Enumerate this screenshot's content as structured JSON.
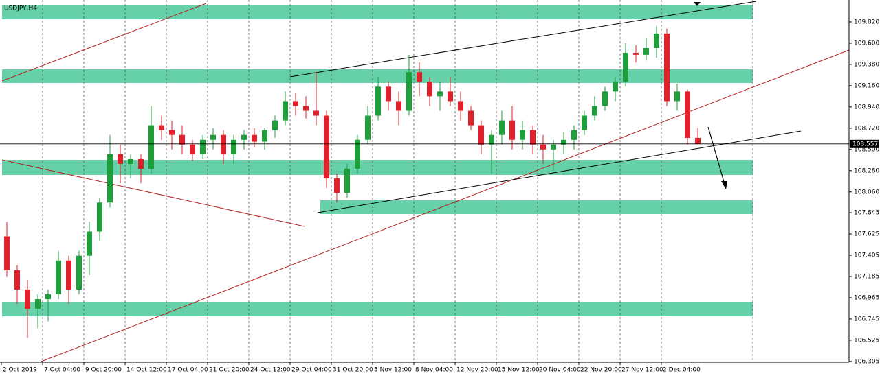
{
  "chart_data": {
    "type": "candlestick",
    "title": "USDJPY,H4",
    "categories": [
      "2 Oct 2019",
      null,
      null,
      null,
      "7 Oct 04:00",
      null,
      null,
      null,
      "9 Oct 20:00",
      null,
      null,
      null,
      "14 Oct 12:00",
      null,
      null,
      null,
      "17 Oct 04:00",
      null,
      null,
      null,
      "21 Oct 20:00",
      null,
      null,
      null,
      "24 Oct 12:00",
      null,
      null,
      null,
      "29 Oct 04:00",
      null,
      null,
      null,
      "31 Oct 20:00",
      null,
      null,
      null,
      "5 Nov 12:00",
      null,
      null,
      null,
      "8 Nov 04:00",
      null,
      null,
      null,
      "12 Nov 20:00",
      null,
      null,
      null,
      "15 Nov 12:00",
      null,
      null,
      null,
      "20 Nov 04:00",
      null,
      null,
      null,
      "22 Nov 20:00",
      null,
      null,
      null,
      "27 Nov 12:00",
      null,
      null,
      null,
      "2 Dec 04:00",
      null,
      null,
      null
    ],
    "open": [
      107.6,
      107.25,
      107.05,
      106.85,
      106.95,
      107.0,
      107.35,
      107.05,
      107.4,
      107.65,
      107.95,
      108.45,
      108.35,
      108.4,
      108.3,
      108.75,
      108.7,
      108.65,
      108.55,
      108.45,
      108.6,
      108.65,
      108.45,
      108.6,
      108.65,
      108.58,
      108.7,
      108.8,
      109.0,
      108.95,
      108.9,
      108.85,
      108.2,
      108.05,
      108.3,
      108.6,
      108.85,
      109.15,
      109.0,
      108.9,
      109.3,
      109.2,
      109.05,
      109.1,
      109.0,
      108.9,
      108.75,
      108.55,
      108.65,
      108.8,
      108.6,
      108.7,
      108.55,
      108.5,
      108.55,
      108.6,
      108.7,
      108.85,
      108.95,
      109.1,
      109.2,
      109.5,
      109.48,
      109.55,
      109.7,
      109.0,
      109.1,
      108.62
    ],
    "high": [
      107.75,
      107.3,
      107.15,
      107.0,
      107.05,
      107.45,
      107.4,
      107.45,
      107.75,
      108.0,
      108.65,
      108.55,
      108.45,
      108.45,
      108.95,
      108.85,
      108.8,
      108.75,
      108.6,
      108.65,
      108.72,
      108.7,
      108.65,
      108.7,
      108.72,
      108.72,
      108.85,
      109.1,
      109.08,
      109.05,
      109.3,
      108.9,
      108.25,
      108.35,
      108.65,
      108.95,
      109.25,
      109.2,
      109.1,
      109.48,
      109.4,
      109.25,
      109.2,
      109.25,
      109.1,
      108.95,
      108.8,
      108.7,
      108.9,
      108.95,
      108.8,
      108.75,
      108.65,
      108.6,
      108.68,
      108.75,
      108.9,
      109.05,
      109.15,
      109.25,
      109.6,
      109.58,
      109.65,
      109.78,
      109.75,
      109.18,
      109.12,
      108.72
    ],
    "low": [
      107.18,
      106.9,
      106.55,
      106.65,
      106.72,
      106.95,
      106.9,
      107.0,
      107.2,
      107.55,
      107.9,
      108.15,
      108.2,
      108.15,
      108.25,
      108.6,
      108.5,
      108.45,
      108.38,
      108.4,
      108.5,
      108.35,
      108.35,
      108.5,
      108.52,
      108.5,
      108.62,
      108.75,
      108.85,
      108.82,
      108.75,
      108.1,
      107.95,
      108.0,
      108.25,
      108.55,
      108.8,
      108.9,
      108.75,
      108.85,
      109.05,
      108.95,
      108.9,
      108.95,
      108.8,
      108.7,
      108.45,
      108.25,
      108.55,
      108.5,
      108.5,
      108.45,
      108.35,
      108.28,
      108.45,
      108.5,
      108.65,
      108.8,
      108.9,
      109.0,
      109.15,
      109.4,
      109.42,
      109.45,
      108.95,
      108.9,
      108.55,
      108.55
    ],
    "close": [
      107.25,
      107.05,
      106.85,
      106.95,
      107.0,
      107.35,
      107.05,
      107.4,
      107.65,
      107.95,
      108.45,
      108.35,
      108.4,
      108.3,
      108.75,
      108.7,
      108.65,
      108.55,
      108.45,
      108.6,
      108.65,
      108.45,
      108.6,
      108.65,
      108.58,
      108.7,
      108.8,
      109.0,
      108.95,
      108.9,
      108.85,
      108.2,
      108.05,
      108.3,
      108.6,
      108.85,
      109.15,
      109.0,
      108.9,
      109.3,
      109.2,
      109.05,
      109.1,
      109.0,
      108.9,
      108.75,
      108.55,
      108.65,
      108.8,
      108.6,
      108.7,
      108.55,
      108.5,
      108.55,
      108.6,
      108.7,
      108.85,
      108.95,
      109.1,
      109.2,
      109.5,
      109.48,
      109.55,
      109.7,
      109.0,
      109.1,
      108.62,
      108.557
    ],
    "last_price": 108.557,
    "up_color": "#1f9e3c",
    "down_color": "#e0202a",
    "zones": [
      [
        109.848,
        109.99
      ],
      [
        109.188,
        109.33
      ],
      [
        108.236,
        108.392
      ],
      [
        107.831,
        107.973
      ],
      [
        106.773,
        106.922
      ]
    ],
    "zone_color": "#66d1a8",
    "ylim": [
      106.297,
      110.047
    ],
    "yticks": [
      {
        "value": 109.82,
        "label": "109.820"
      },
      {
        "value": 109.6,
        "label": "109.600"
      },
      {
        "value": 109.38,
        "label": "109.380"
      },
      {
        "value": 109.16,
        "label": "109.160"
      },
      {
        "value": 108.94,
        "label": "108.940"
      },
      {
        "value": 108.72,
        "label": "108.720"
      },
      {
        "value": 108.5,
        "label": "108.500"
      },
      {
        "value": 108.28,
        "label": "108.280"
      },
      {
        "value": 108.06,
        "label": "108.060"
      },
      {
        "value": 107.845,
        "label": "107.845"
      },
      {
        "value": 107.625,
        "label": "107.625"
      },
      {
        "value": 107.405,
        "label": "107.405"
      },
      {
        "value": 107.185,
        "label": "107.185"
      },
      {
        "value": 106.965,
        "label": "106.965"
      },
      {
        "value": 106.745,
        "label": "106.745"
      },
      {
        "value": 106.525,
        "label": "106.525"
      },
      {
        "value": 106.305,
        "label": "106.305"
      }
    ],
    "grid": true
  }
}
